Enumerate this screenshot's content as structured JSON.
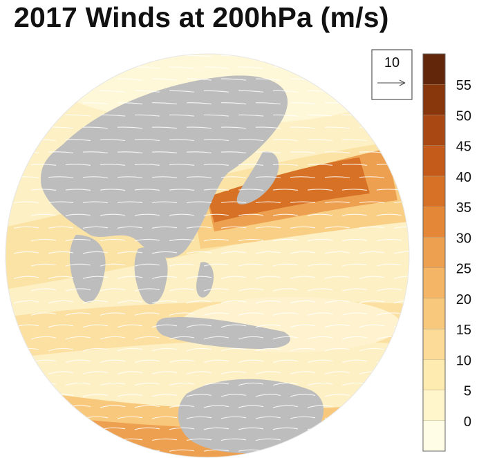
{
  "title": "2017 Winds at 200hPa (m/s)",
  "reference_vector": {
    "label": "10"
  },
  "colorbar": {
    "tick_labels": [
      "0",
      "5",
      "10",
      "15",
      "20",
      "25",
      "30",
      "35",
      "40",
      "45",
      "50",
      "55"
    ],
    "levels": [
      0,
      5,
      10,
      15,
      20,
      25,
      30,
      35,
      40,
      45,
      50,
      55,
      60
    ],
    "colors": [
      "#fffde6",
      "#fff6cc",
      "#fdebb0",
      "#fbdb97",
      "#f8c97c",
      "#f4b566",
      "#eda04f",
      "#e48838",
      "#d67126",
      "#c45b1a",
      "#a94812",
      "#88360c",
      "#62260a"
    ]
  },
  "map": {
    "projection": "orthographic globe",
    "land_color": "#bdbdbd",
    "vector_color": "#ffffff"
  }
}
